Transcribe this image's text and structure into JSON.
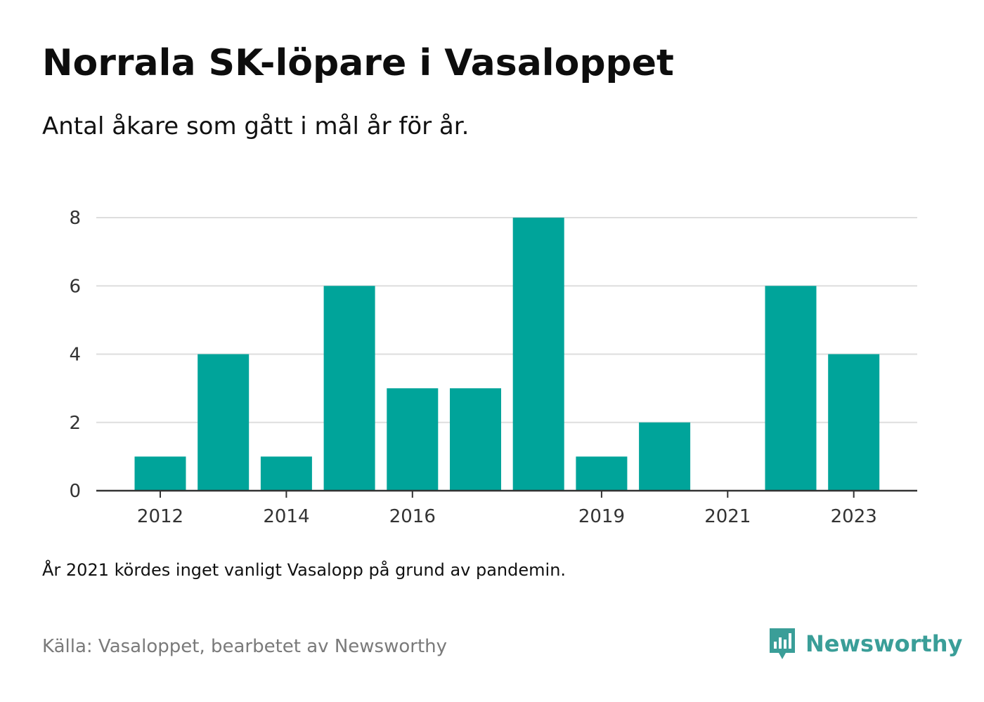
{
  "title": "Norrala SK-löpare i Vasaloppet",
  "subtitle": "Antal åkare som gått i mål år för år.",
  "note": "År 2021 kördes inget vanligt Vasalopp på grund av pandemin.",
  "source": "Källa: Vasaloppet, bearbetet av Newsworthy",
  "brand": {
    "name": "Newsworthy",
    "icon": "newsworthy-logo-icon",
    "color": "#3a9e98"
  },
  "chart_data": {
    "type": "bar",
    "categories": [
      "2012",
      "2013",
      "2014",
      "2015",
      "2016",
      "2017",
      "2018",
      "2019",
      "2020",
      "2021",
      "2022",
      "2023"
    ],
    "values": [
      1,
      4,
      1,
      6,
      3,
      3,
      8,
      1,
      2,
      0,
      6,
      4
    ],
    "x_tick_labels": [
      "2012",
      "2014",
      "2016",
      "2019",
      "2021",
      "2023"
    ],
    "y_ticks": [
      0,
      2,
      4,
      6,
      8
    ],
    "ylim": [
      0,
      8
    ],
    "grid": true,
    "bar_color": "#00a49a",
    "title": "Norrala SK-löpare i Vasaloppet",
    "subtitle": "Antal åkare som gått i mål år för år.",
    "xlabel": "",
    "ylabel": ""
  }
}
